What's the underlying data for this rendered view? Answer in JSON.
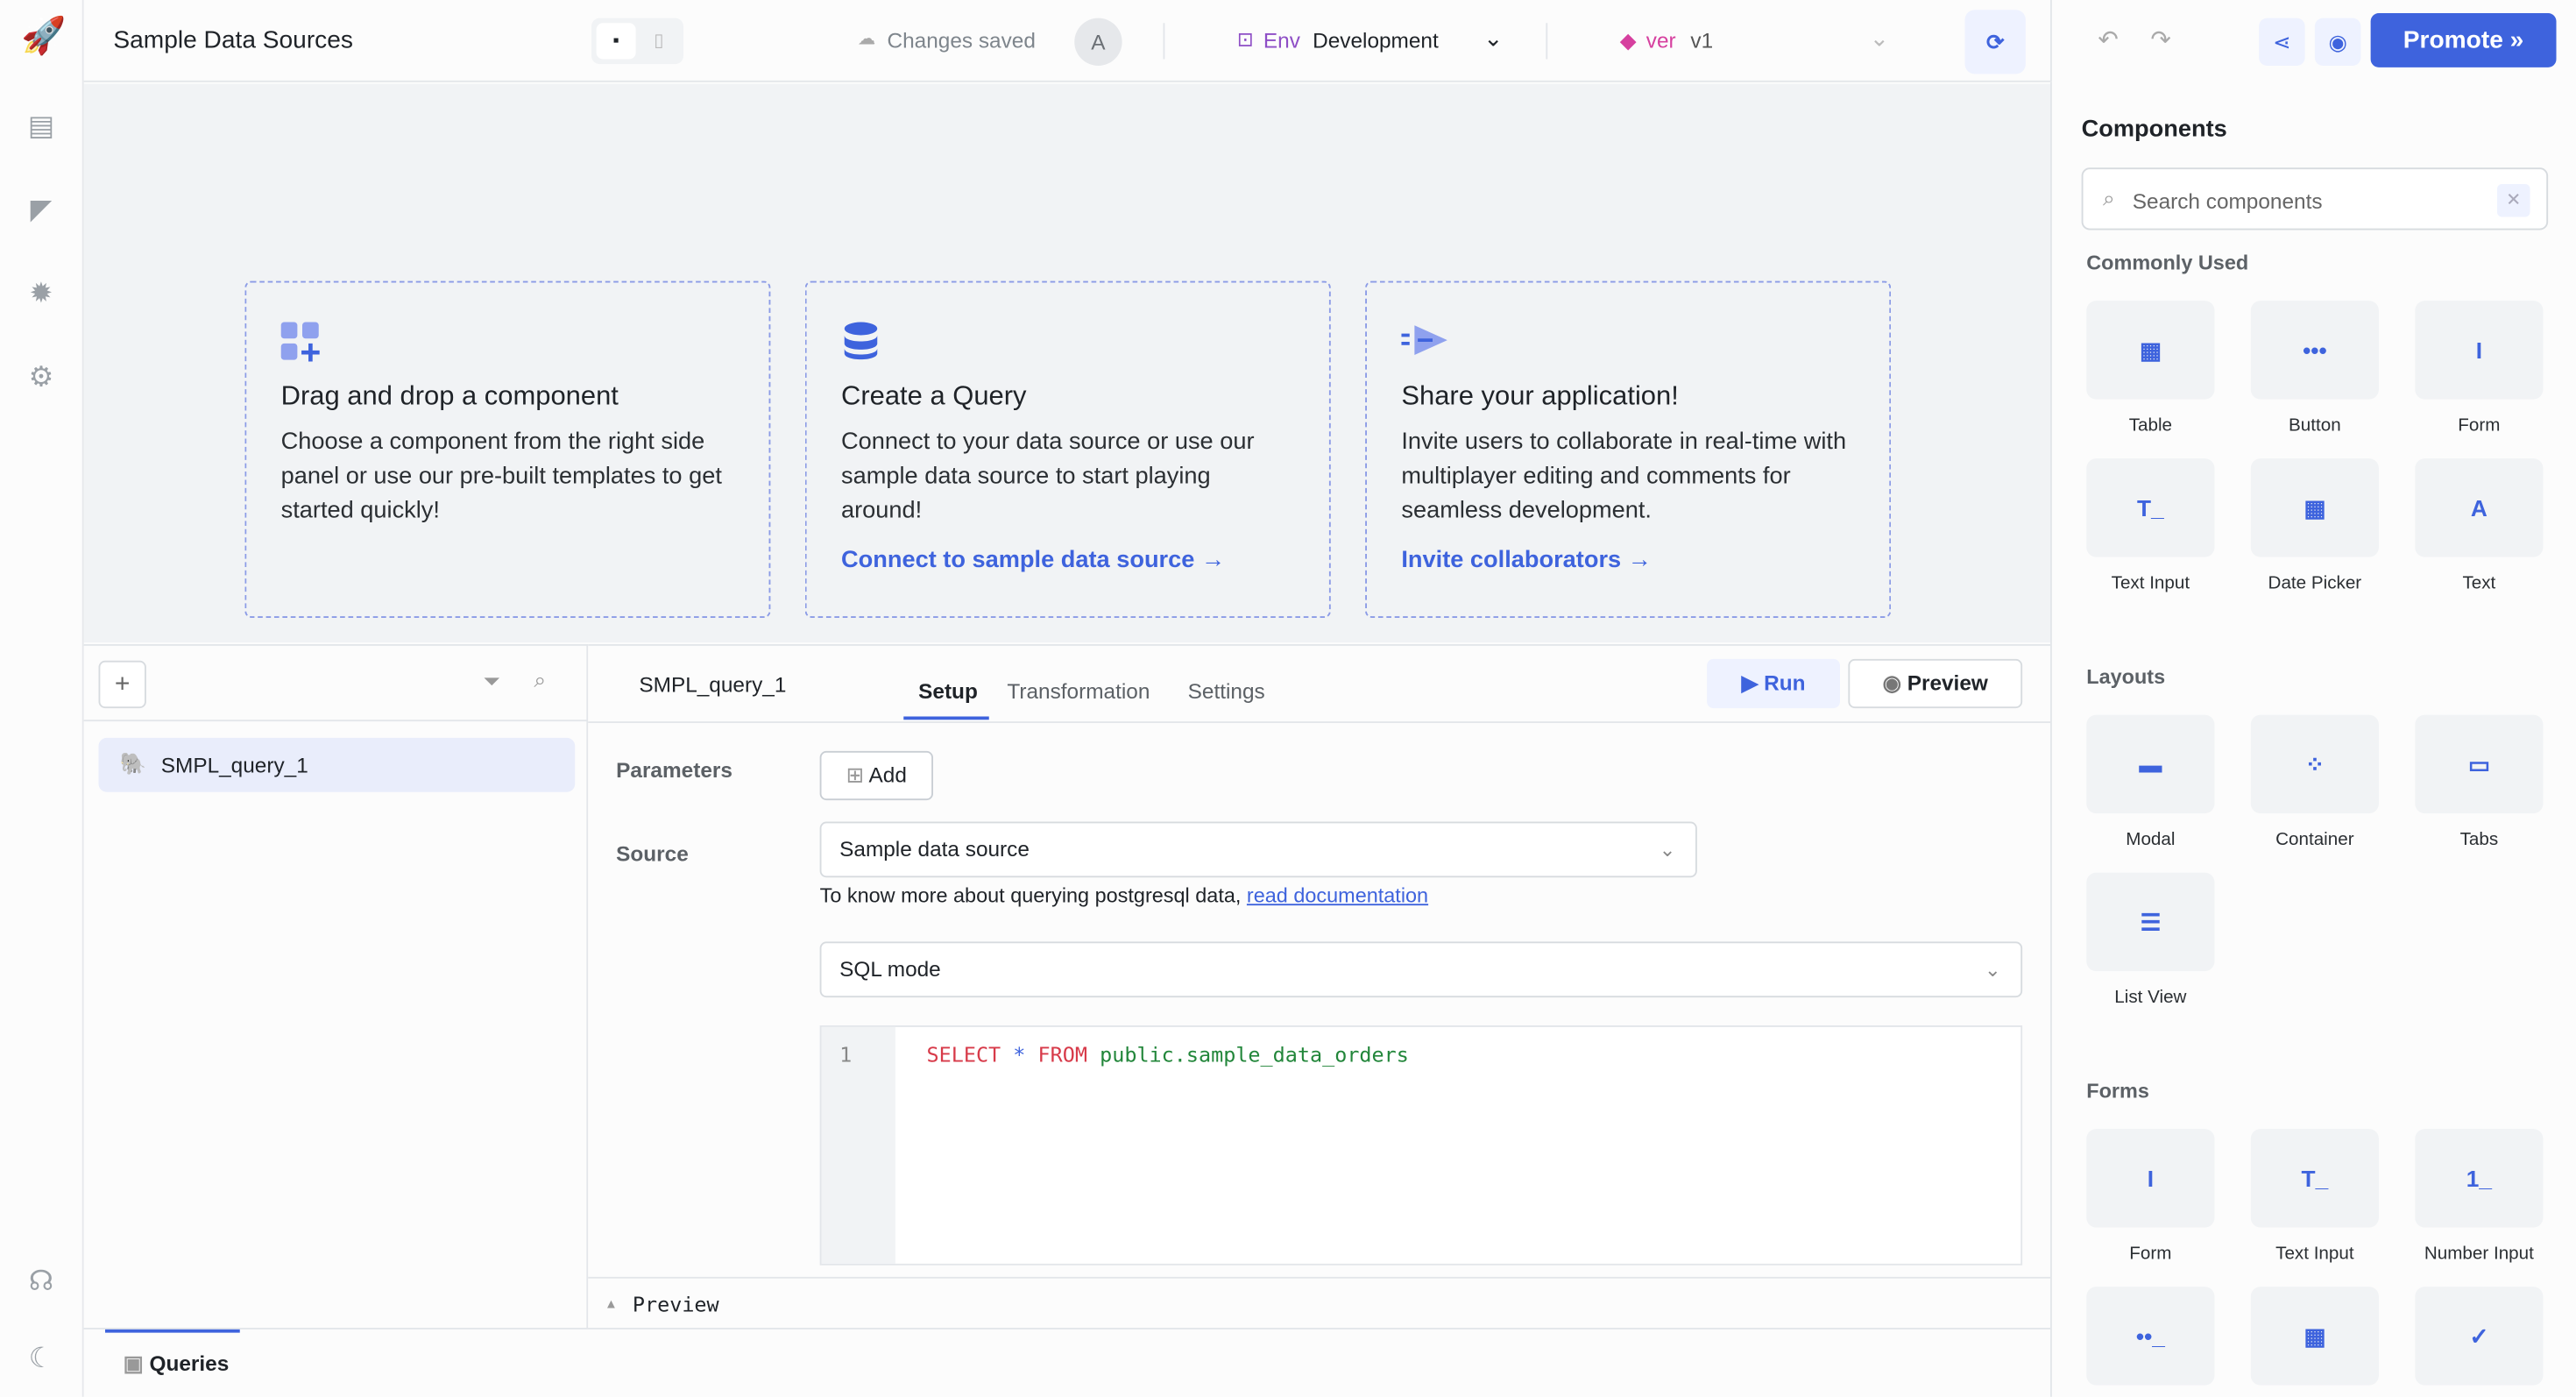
{
  "header": {
    "app_title": "Sample Data Sources",
    "save_status": "Changes saved",
    "avatar_initial": "A",
    "env_label": "Env",
    "env_value": "Development",
    "version_label": "ver",
    "version_value": "v1",
    "promote_label": "Promote"
  },
  "sidebar": {
    "icons": [
      "pages-icon",
      "comments-icon",
      "debugger-icon",
      "settings-icon",
      "help-icon",
      "theme-icon"
    ]
  },
  "canvas": {
    "cards": [
      {
        "title": "Drag and drop a component",
        "body": "Choose a component from the right side panel or use our pre-built templates to get started quickly!",
        "link": ""
      },
      {
        "title": "Create a Query",
        "body": "Connect to your data source or use our sample data source to start playing around!",
        "link": "Connect to sample data source"
      },
      {
        "title": "Share your application!",
        "body": "Invite users to collaborate in real-time with multiplayer editing and comments for seamless development.",
        "link": "Invite collaborators"
      }
    ]
  },
  "queries": {
    "items": [
      "SMPL_query_1"
    ],
    "selected": "SMPL_query_1",
    "bottom_tab": "Queries"
  },
  "editor": {
    "query_name": "SMPL_query_1",
    "tabs": [
      "Setup",
      "Transformation",
      "Settings"
    ],
    "active_tab": "Setup",
    "run_label": "Run",
    "preview_label": "Preview",
    "parameters_label": "Parameters",
    "add_label": "Add",
    "source_label": "Source",
    "source_value": "Sample data source",
    "help_text": "To know more about querying postgresql data,",
    "help_link": "read documentation",
    "mode_value": "SQL mode",
    "line_number": "1",
    "sql": {
      "kw1": "SELECT",
      "star": "*",
      "kw2": "FROM",
      "table": "public.sample_data_orders"
    },
    "preview_section": "Preview"
  },
  "components": {
    "title": "Components",
    "search_placeholder": "Search components",
    "commonly_used_label": "Commonly Used",
    "commonly_used": [
      "Table",
      "Button",
      "Form",
      "Text Input",
      "Date Picker",
      "Text"
    ],
    "layouts_label": "Layouts",
    "layouts": [
      "Modal",
      "Container",
      "Tabs",
      "List View"
    ],
    "forms_label": "Forms",
    "forms": [
      "Form",
      "Text Input",
      "Number Input"
    ]
  },
  "colors": {
    "accent": "#3e63dd",
    "env": "#8e4ec6",
    "version": "#d6409f"
  }
}
